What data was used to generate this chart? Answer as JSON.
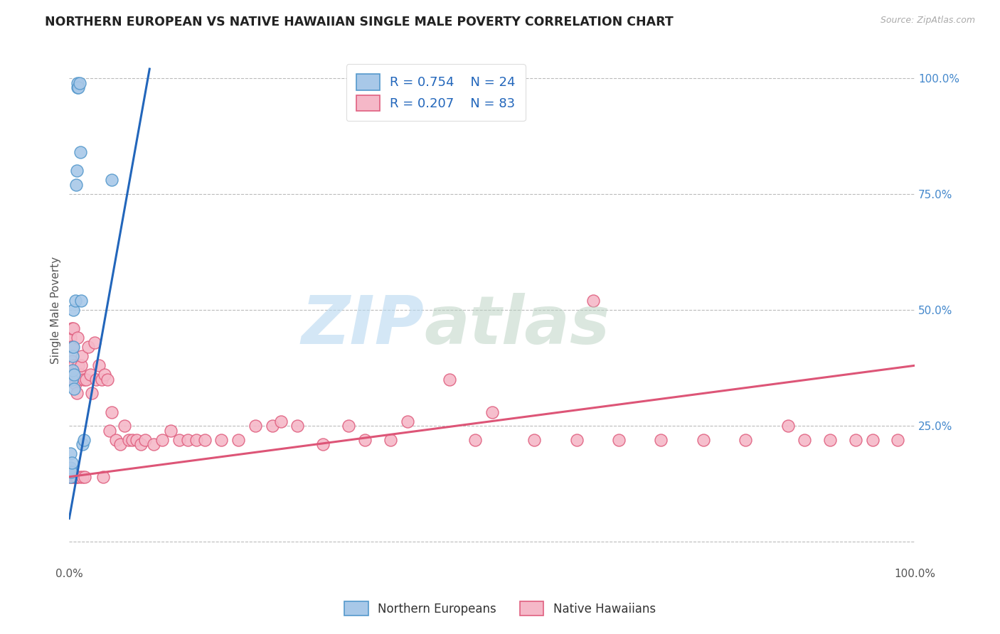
{
  "title": "NORTHERN EUROPEAN VS NATIVE HAWAIIAN SINGLE MALE POVERTY CORRELATION CHART",
  "source": "Source: ZipAtlas.com",
  "ylabel": "Single Male Poverty",
  "legend_blue_label": "Northern Europeans",
  "legend_pink_label": "Native Hawaiians",
  "blue_R": "R = 0.754",
  "blue_N": "N = 24",
  "pink_R": "R = 0.207",
  "pink_N": "N = 83",
  "blue_dot_color": "#a8c8e8",
  "blue_edge_color": "#5599cc",
  "pink_dot_color": "#f5b8c8",
  "pink_edge_color": "#e06080",
  "blue_line_color": "#2266bb",
  "pink_line_color": "#dd5577",
  "bg_color": "#ffffff",
  "grid_color": "#bbbbbb",
  "title_color": "#222222",
  "axis_label_color": "#555555",
  "right_axis_color": "#4488cc",
  "xlim": [
    0.0,
    1.0
  ],
  "ylim": [
    -0.05,
    1.05
  ],
  "blue_points_x": [
    0.001,
    0.001,
    0.001,
    0.002,
    0.003,
    0.003,
    0.004,
    0.004,
    0.005,
    0.005,
    0.006,
    0.006,
    0.007,
    0.008,
    0.009,
    0.01,
    0.01,
    0.011,
    0.012,
    0.013,
    0.014,
    0.016,
    0.017,
    0.05
  ],
  "blue_points_y": [
    0.14,
    0.16,
    0.19,
    0.15,
    0.17,
    0.35,
    0.37,
    0.4,
    0.42,
    0.5,
    0.33,
    0.36,
    0.52,
    0.77,
    0.8,
    0.98,
    0.99,
    0.98,
    0.99,
    0.84,
    0.52,
    0.21,
    0.22,
    0.78
  ],
  "pink_points_x": [
    0.001,
    0.001,
    0.002,
    0.002,
    0.003,
    0.003,
    0.004,
    0.004,
    0.005,
    0.005,
    0.006,
    0.006,
    0.007,
    0.007,
    0.008,
    0.008,
    0.009,
    0.009,
    0.01,
    0.01,
    0.011,
    0.012,
    0.013,
    0.014,
    0.015,
    0.016,
    0.017,
    0.018,
    0.02,
    0.022,
    0.025,
    0.027,
    0.03,
    0.032,
    0.035,
    0.038,
    0.04,
    0.042,
    0.045,
    0.048,
    0.05,
    0.055,
    0.06,
    0.065,
    0.07,
    0.075,
    0.08,
    0.085,
    0.09,
    0.1,
    0.11,
    0.12,
    0.13,
    0.14,
    0.15,
    0.16,
    0.18,
    0.2,
    0.22,
    0.24,
    0.25,
    0.27,
    0.3,
    0.33,
    0.35,
    0.38,
    0.4,
    0.45,
    0.48,
    0.5,
    0.55,
    0.6,
    0.65,
    0.7,
    0.75,
    0.8,
    0.85,
    0.87,
    0.9,
    0.93,
    0.95,
    0.98,
    0.62
  ],
  "pink_points_y": [
    0.14,
    0.44,
    0.15,
    0.42,
    0.39,
    0.46,
    0.14,
    0.42,
    0.35,
    0.46,
    0.14,
    0.38,
    0.14,
    0.34,
    0.14,
    0.37,
    0.14,
    0.32,
    0.35,
    0.44,
    0.38,
    0.14,
    0.36,
    0.38,
    0.4,
    0.14,
    0.35,
    0.14,
    0.35,
    0.42,
    0.36,
    0.32,
    0.43,
    0.35,
    0.38,
    0.35,
    0.14,
    0.36,
    0.35,
    0.24,
    0.28,
    0.22,
    0.21,
    0.25,
    0.22,
    0.22,
    0.22,
    0.21,
    0.22,
    0.21,
    0.22,
    0.24,
    0.22,
    0.22,
    0.22,
    0.22,
    0.22,
    0.22,
    0.25,
    0.25,
    0.26,
    0.25,
    0.21,
    0.25,
    0.22,
    0.22,
    0.26,
    0.35,
    0.22,
    0.28,
    0.22,
    0.22,
    0.22,
    0.22,
    0.22,
    0.22,
    0.25,
    0.22,
    0.22,
    0.22,
    0.22,
    0.22,
    0.52
  ],
  "blue_trendline_x": [
    0.0,
    0.095
  ],
  "blue_trendline_y": [
    0.05,
    1.02
  ],
  "pink_trendline_x": [
    0.0,
    1.0
  ],
  "pink_trendline_y": [
    0.14,
    0.38
  ]
}
